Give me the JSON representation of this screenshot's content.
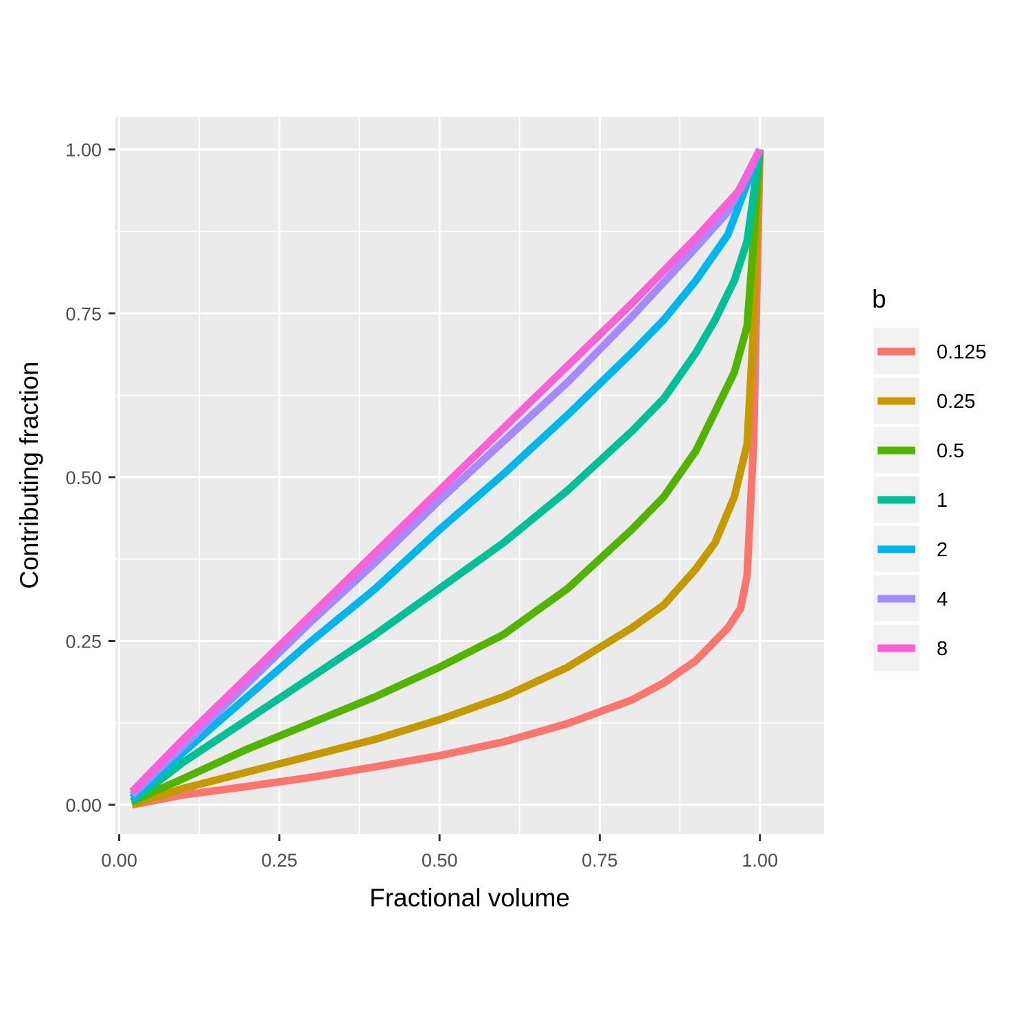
{
  "chart_data": {
    "type": "line",
    "xlabel": "Fractional volume",
    "ylabel": "Contributing fraction",
    "xlim": [
      -0.006,
      1.1
    ],
    "ylim": [
      -0.045,
      1.05
    ],
    "x_ticks": [
      0.0,
      0.25,
      0.5,
      0.75,
      1.0
    ],
    "x_tick_labels": [
      "0.00",
      "0.25",
      "0.50",
      "0.75",
      "1.00"
    ],
    "y_ticks": [
      0.0,
      0.25,
      0.5,
      0.75,
      1.0
    ],
    "y_tick_labels": [
      "0.00",
      "0.25",
      "0.50",
      "0.75",
      "1.00"
    ],
    "grid": true,
    "panel_background": "#ebebeb",
    "legend": {
      "title": "b",
      "position": "right",
      "background": "#f2f2f2"
    },
    "series": [
      {
        "name": "0.125",
        "color": "#F8766D",
        "points": [
          [
            0.02,
            0.0
          ],
          [
            0.1,
            0.015
          ],
          [
            0.2,
            0.028
          ],
          [
            0.3,
            0.042
          ],
          [
            0.4,
            0.058
          ],
          [
            0.5,
            0.075
          ],
          [
            0.6,
            0.096
          ],
          [
            0.7,
            0.124
          ],
          [
            0.8,
            0.16
          ],
          [
            0.85,
            0.186
          ],
          [
            0.9,
            0.22
          ],
          [
            0.93,
            0.25
          ],
          [
            0.95,
            0.27
          ],
          [
            0.97,
            0.3
          ],
          [
            0.98,
            0.35
          ],
          [
            0.99,
            0.55
          ],
          [
            1.0,
            1.0
          ]
        ]
      },
      {
        "name": "0.25",
        "color": "#C49A00",
        "points": [
          [
            0.02,
            0.0
          ],
          [
            0.1,
            0.025
          ],
          [
            0.2,
            0.05
          ],
          [
            0.3,
            0.075
          ],
          [
            0.4,
            0.1
          ],
          [
            0.5,
            0.13
          ],
          [
            0.6,
            0.165
          ],
          [
            0.7,
            0.21
          ],
          [
            0.8,
            0.27
          ],
          [
            0.85,
            0.305
          ],
          [
            0.9,
            0.36
          ],
          [
            0.93,
            0.4
          ],
          [
            0.96,
            0.47
          ],
          [
            0.98,
            0.55
          ],
          [
            0.99,
            0.73
          ],
          [
            1.0,
            1.0
          ]
        ]
      },
      {
        "name": "0.5",
        "color": "#53B400",
        "points": [
          [
            0.02,
            0.005
          ],
          [
            0.1,
            0.04
          ],
          [
            0.2,
            0.085
          ],
          [
            0.3,
            0.125
          ],
          [
            0.4,
            0.165
          ],
          [
            0.5,
            0.21
          ],
          [
            0.6,
            0.26
          ],
          [
            0.7,
            0.33
          ],
          [
            0.8,
            0.42
          ],
          [
            0.85,
            0.47
          ],
          [
            0.9,
            0.54
          ],
          [
            0.93,
            0.6
          ],
          [
            0.96,
            0.66
          ],
          [
            0.98,
            0.73
          ],
          [
            0.99,
            0.86
          ],
          [
            1.0,
            1.0
          ]
        ]
      },
      {
        "name": "1",
        "color": "#00C094",
        "points": [
          [
            0.02,
            0.005
          ],
          [
            0.1,
            0.065
          ],
          [
            0.2,
            0.13
          ],
          [
            0.3,
            0.195
          ],
          [
            0.4,
            0.26
          ],
          [
            0.5,
            0.33
          ],
          [
            0.6,
            0.4
          ],
          [
            0.7,
            0.48
          ],
          [
            0.8,
            0.57
          ],
          [
            0.85,
            0.62
          ],
          [
            0.9,
            0.69
          ],
          [
            0.93,
            0.74
          ],
          [
            0.96,
            0.8
          ],
          [
            0.98,
            0.86
          ],
          [
            1.0,
            1.0
          ]
        ]
      },
      {
        "name": "2",
        "color": "#00B6EB",
        "points": [
          [
            0.02,
            0.01
          ],
          [
            0.1,
            0.08
          ],
          [
            0.2,
            0.165
          ],
          [
            0.3,
            0.25
          ],
          [
            0.4,
            0.33
          ],
          [
            0.5,
            0.42
          ],
          [
            0.6,
            0.505
          ],
          [
            0.7,
            0.595
          ],
          [
            0.8,
            0.69
          ],
          [
            0.85,
            0.74
          ],
          [
            0.9,
            0.8
          ],
          [
            0.95,
            0.87
          ],
          [
            1.0,
            1.0
          ]
        ]
      },
      {
        "name": "4",
        "color": "#A58AFF",
        "points": [
          [
            0.02,
            0.015
          ],
          [
            0.1,
            0.09
          ],
          [
            0.2,
            0.185
          ],
          [
            0.3,
            0.28
          ],
          [
            0.4,
            0.37
          ],
          [
            0.5,
            0.465
          ],
          [
            0.6,
            0.555
          ],
          [
            0.7,
            0.645
          ],
          [
            0.8,
            0.745
          ],
          [
            0.9,
            0.85
          ],
          [
            0.95,
            0.905
          ],
          [
            1.0,
            1.0
          ]
        ]
      },
      {
        "name": "8",
        "color": "#FB61D7",
        "points": [
          [
            0.02,
            0.02
          ],
          [
            0.1,
            0.1
          ],
          [
            0.2,
            0.195
          ],
          [
            0.3,
            0.29
          ],
          [
            0.4,
            0.385
          ],
          [
            0.5,
            0.48
          ],
          [
            0.6,
            0.575
          ],
          [
            0.7,
            0.67
          ],
          [
            0.8,
            0.765
          ],
          [
            0.9,
            0.865
          ],
          [
            0.97,
            0.94
          ],
          [
            1.0,
            1.0
          ]
        ]
      }
    ]
  }
}
